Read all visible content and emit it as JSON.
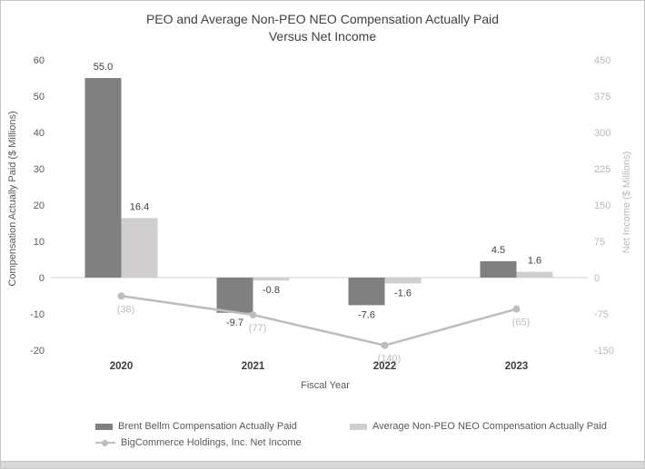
{
  "page": {
    "title_lines": [
      "PEO and Average Non-PEO NEO Compensation Actually Paid",
      "Versus Net Income"
    ]
  },
  "colors": {
    "peo_bar": "#808080",
    "neo_bar": "#d0cece",
    "net_income_line": "#bdbdbd",
    "zero_line": "#d9d9d9",
    "dark_text": "#404040",
    "muted_text": "#595959",
    "light_text": "#b9b9b9"
  },
  "chart_data": {
    "type": "bar",
    "subtype": "combo-bar-line-dual-axis",
    "title": "PEO and Average Non-PEO NEO Compensation Actually Paid Versus Net Income",
    "categories": [
      "2020",
      "2021",
      "2022",
      "2023"
    ],
    "series": [
      {
        "name": "Brent Bellm Compensation Actually Paid",
        "type": "bar",
        "axis": "left",
        "color": "#808080",
        "values": [
          55.0,
          -9.7,
          -7.6,
          4.5
        ],
        "labels": [
          "55.0",
          "-9.7",
          "-7.6",
          "4.5"
        ]
      },
      {
        "name": "Average Non-PEO NEO Compensation Actually Paid",
        "type": "bar",
        "axis": "left",
        "color": "#d0cece",
        "values": [
          16.4,
          -0.8,
          -1.6,
          1.6
        ],
        "labels": [
          "16.4",
          "-0.8",
          "-1.6",
          "1.6"
        ]
      },
      {
        "name": "BigCommerce Holdings, Inc. Net Income",
        "type": "line",
        "axis": "right",
        "color": "#bdbdbd",
        "values": [
          -38,
          -77,
          -140,
          -65
        ],
        "labels": [
          "(38)",
          "(77)",
          "(140)",
          "(65)"
        ]
      }
    ],
    "xlabel": "Fiscal Year",
    "left_axis": {
      "label": "Compensation Actually Paid ($ Millions)",
      "ticks": [
        60,
        50,
        40,
        30,
        20,
        10,
        0,
        -10,
        -20
      ],
      "min": -20,
      "max": 60
    },
    "right_axis": {
      "label": "Net Income ($ Millions)",
      "ticks": [
        450,
        375,
        300,
        225,
        150,
        75,
        0,
        -75,
        -150
      ],
      "min": -150,
      "max": 450
    },
    "grid": "zero-line-only",
    "legend_position": "bottom"
  }
}
